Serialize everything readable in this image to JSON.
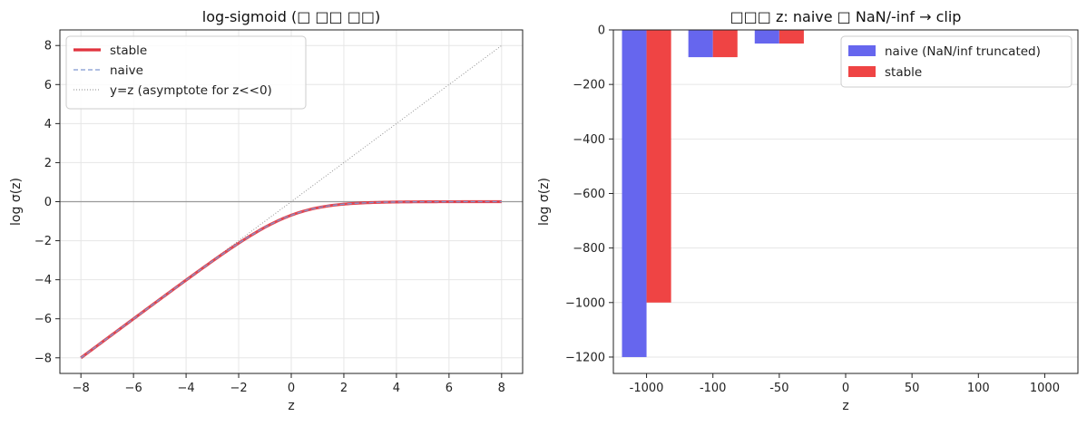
{
  "chart_data": [
    {
      "type": "line",
      "title": "log-sigmoid (□ □□ □□)",
      "xlabel": "z",
      "ylabel": "log σ(z)",
      "xlim": [
        -8.8,
        8.8
      ],
      "ylim": [
        -8.8,
        8.8
      ],
      "xticks": [
        -8,
        -6,
        -4,
        -2,
        0,
        2,
        4,
        6,
        8
      ],
      "yticks": [
        -8,
        -6,
        -4,
        -2,
        0,
        2,
        4,
        6,
        8
      ],
      "grid": true,
      "legend_position": "top-left",
      "hline_y": 0,
      "series": [
        {
          "name": "stable",
          "style": "solid",
          "color": "#e0333e",
          "function": "log_sigmoid",
          "x_range": [
            -8,
            8
          ]
        },
        {
          "name": "naive",
          "style": "dashed",
          "color": "#7f96d1",
          "function": "log_sigmoid",
          "x_range": [
            -8,
            8
          ]
        },
        {
          "name": "y=z (asymptote for z<<0)",
          "style": "dotted",
          "color": "#888888",
          "function": "identity",
          "x_range": [
            -8,
            8
          ]
        }
      ]
    },
    {
      "type": "bar",
      "title": "□□□ z: naive □ NaN/-inf → clip",
      "xlabel": "z",
      "ylabel": "log σ(z)",
      "categories": [
        "-1000",
        "-100",
        "-50",
        "0",
        "50",
        "100",
        "1000"
      ],
      "ylim": [
        -1260,
        0
      ],
      "yticks": [
        0,
        -200,
        -400,
        -600,
        -800,
        -1000,
        -1200
      ],
      "grid": true,
      "legend_position": "top-right",
      "series": [
        {
          "name": "naive (NaN/inf truncated)",
          "color": "#6666ee",
          "values": [
            -1200,
            -100,
            -50,
            0,
            0,
            0,
            0
          ]
        },
        {
          "name": "stable",
          "color": "#ef4444",
          "values": [
            -1000,
            -100,
            -50,
            -0.693,
            0,
            0,
            0
          ]
        }
      ]
    }
  ]
}
